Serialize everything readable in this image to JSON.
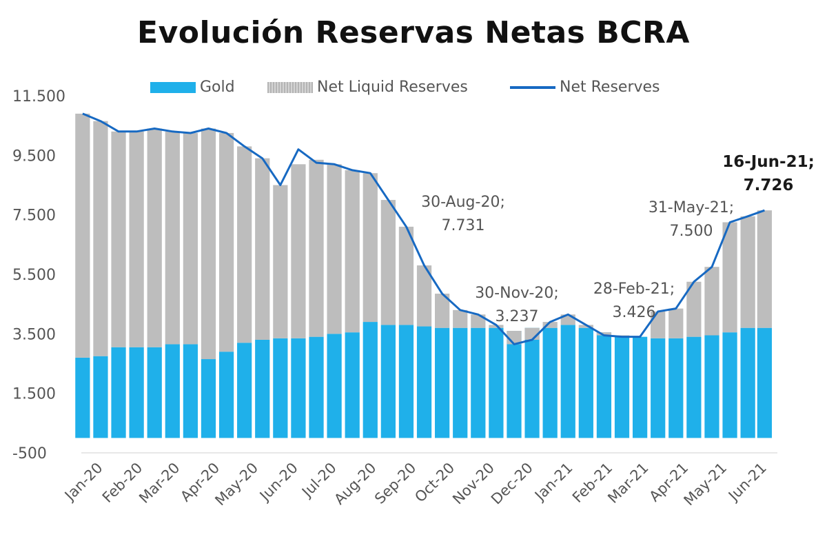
{
  "chart_data": {
    "type": "area",
    "title": "Evolución Reservas Netas BCRA",
    "xlabel": "",
    "ylabel": "",
    "ylim": [
      -500,
      11500
    ],
    "yticks": [
      "11.500",
      "9.500",
      "7.500",
      "5.500",
      "3.500",
      "1.500",
      "-500"
    ],
    "ytick_values": [
      11500,
      9500,
      7500,
      5500,
      3500,
      1500,
      -500
    ],
    "xticks": [
      "Jan-20",
      "Feb-20",
      "Mar-20",
      "Apr-20",
      "May-20",
      "Jun-20",
      "Jul-20",
      "Aug-20",
      "Sep-20",
      "Oct-20",
      "Nov-20",
      "Dec-20",
      "Jan-21",
      "Feb-21",
      "Mar-21",
      "Apr-21",
      "May-21",
      "Jun-21"
    ],
    "x_dates": [
      "2020-01-02",
      "2020-01-16",
      "2020-01-30",
      "2020-02-13",
      "2020-02-27",
      "2020-03-12",
      "2020-03-26",
      "2020-04-09",
      "2020-04-23",
      "2020-05-07",
      "2020-05-21",
      "2020-06-04",
      "2020-06-18",
      "2020-07-02",
      "2020-07-16",
      "2020-07-30",
      "2020-08-13",
      "2020-08-27",
      "2020-09-10",
      "2020-09-24",
      "2020-10-08",
      "2020-10-22",
      "2020-11-05",
      "2020-11-19",
      "2020-12-03",
      "2020-12-17",
      "2020-12-31",
      "2021-01-14",
      "2021-01-28",
      "2021-02-11",
      "2021-02-25",
      "2021-03-11",
      "2021-03-25",
      "2021-04-08",
      "2021-04-22",
      "2021-05-06",
      "2021-05-20",
      "2021-06-03",
      "2021-06-16"
    ],
    "series": [
      {
        "name": "Gold",
        "kind": "bar",
        "color": "#1fb0ea",
        "values": [
          2700,
          2750,
          3050,
          3050,
          3050,
          3150,
          3150,
          2650,
          2900,
          3200,
          3300,
          3350,
          3350,
          3400,
          3500,
          3550,
          3900,
          3800,
          3800,
          3750,
          3700,
          3700,
          3700,
          3700,
          3600,
          3700,
          3700,
          3800,
          3700,
          3550,
          3450,
          3400,
          3350,
          3350,
          3400,
          3450,
          3550,
          3700,
          3700
        ]
      },
      {
        "name": "Net Liquid Reserves",
        "kind": "bar",
        "color": "#bdbdbd",
        "values": [
          8200,
          7900,
          7250,
          7250,
          7350,
          7150,
          7100,
          7750,
          7350,
          6600,
          6100,
          5150,
          5850,
          5950,
          5700,
          5450,
          5000,
          4200,
          3300,
          2050,
          1150,
          600,
          450,
          100,
          -450,
          -400,
          200,
          350,
          100,
          -100,
          -50,
          0,
          900,
          1000,
          1850,
          2300,
          3700,
          3750,
          3950
        ]
      },
      {
        "name": "Net Reserves",
        "kind": "line",
        "color": "#1769c2",
        "values": [
          10900,
          10650,
          10300,
          10300,
          10400,
          10300,
          10250,
          10400,
          10250,
          9800,
          9400,
          8500,
          9700,
          9250,
          9200,
          9000,
          8900,
          8000,
          7100,
          5800,
          4850,
          4300,
          4150,
          3800,
          3150,
          3300,
          3900,
          4150,
          3800,
          3450,
          3400,
          3400,
          4250,
          4350,
          5250,
          5750,
          7250,
          7450,
          7650
        ]
      }
    ],
    "annotations": [
      {
        "date": "2020-08-30",
        "value": 7731,
        "line1": "30-Aug-20;",
        "line2": "7.731",
        "bold": false
      },
      {
        "date": "2020-11-30",
        "value": 3237,
        "line1": "30-Nov-20;",
        "line2": "3.237",
        "bold": false
      },
      {
        "date": "2021-02-28",
        "value": 3426,
        "line1": "28-Feb-21;",
        "line2": "3.426",
        "bold": false
      },
      {
        "date": "2021-05-31",
        "value": 7500,
        "line1": "31-May-21;",
        "line2": "7.500",
        "bold": false
      },
      {
        "date": "2021-06-16",
        "value": 7726,
        "line1": "16-Jun-21;",
        "line2": "7.726",
        "bold": true
      }
    ],
    "legend_position": "top",
    "grid": false,
    "colors": {
      "gold": "#1fb0ea",
      "net_liquid": "#bdbdbd",
      "net_reserves": "#1769c2"
    }
  }
}
